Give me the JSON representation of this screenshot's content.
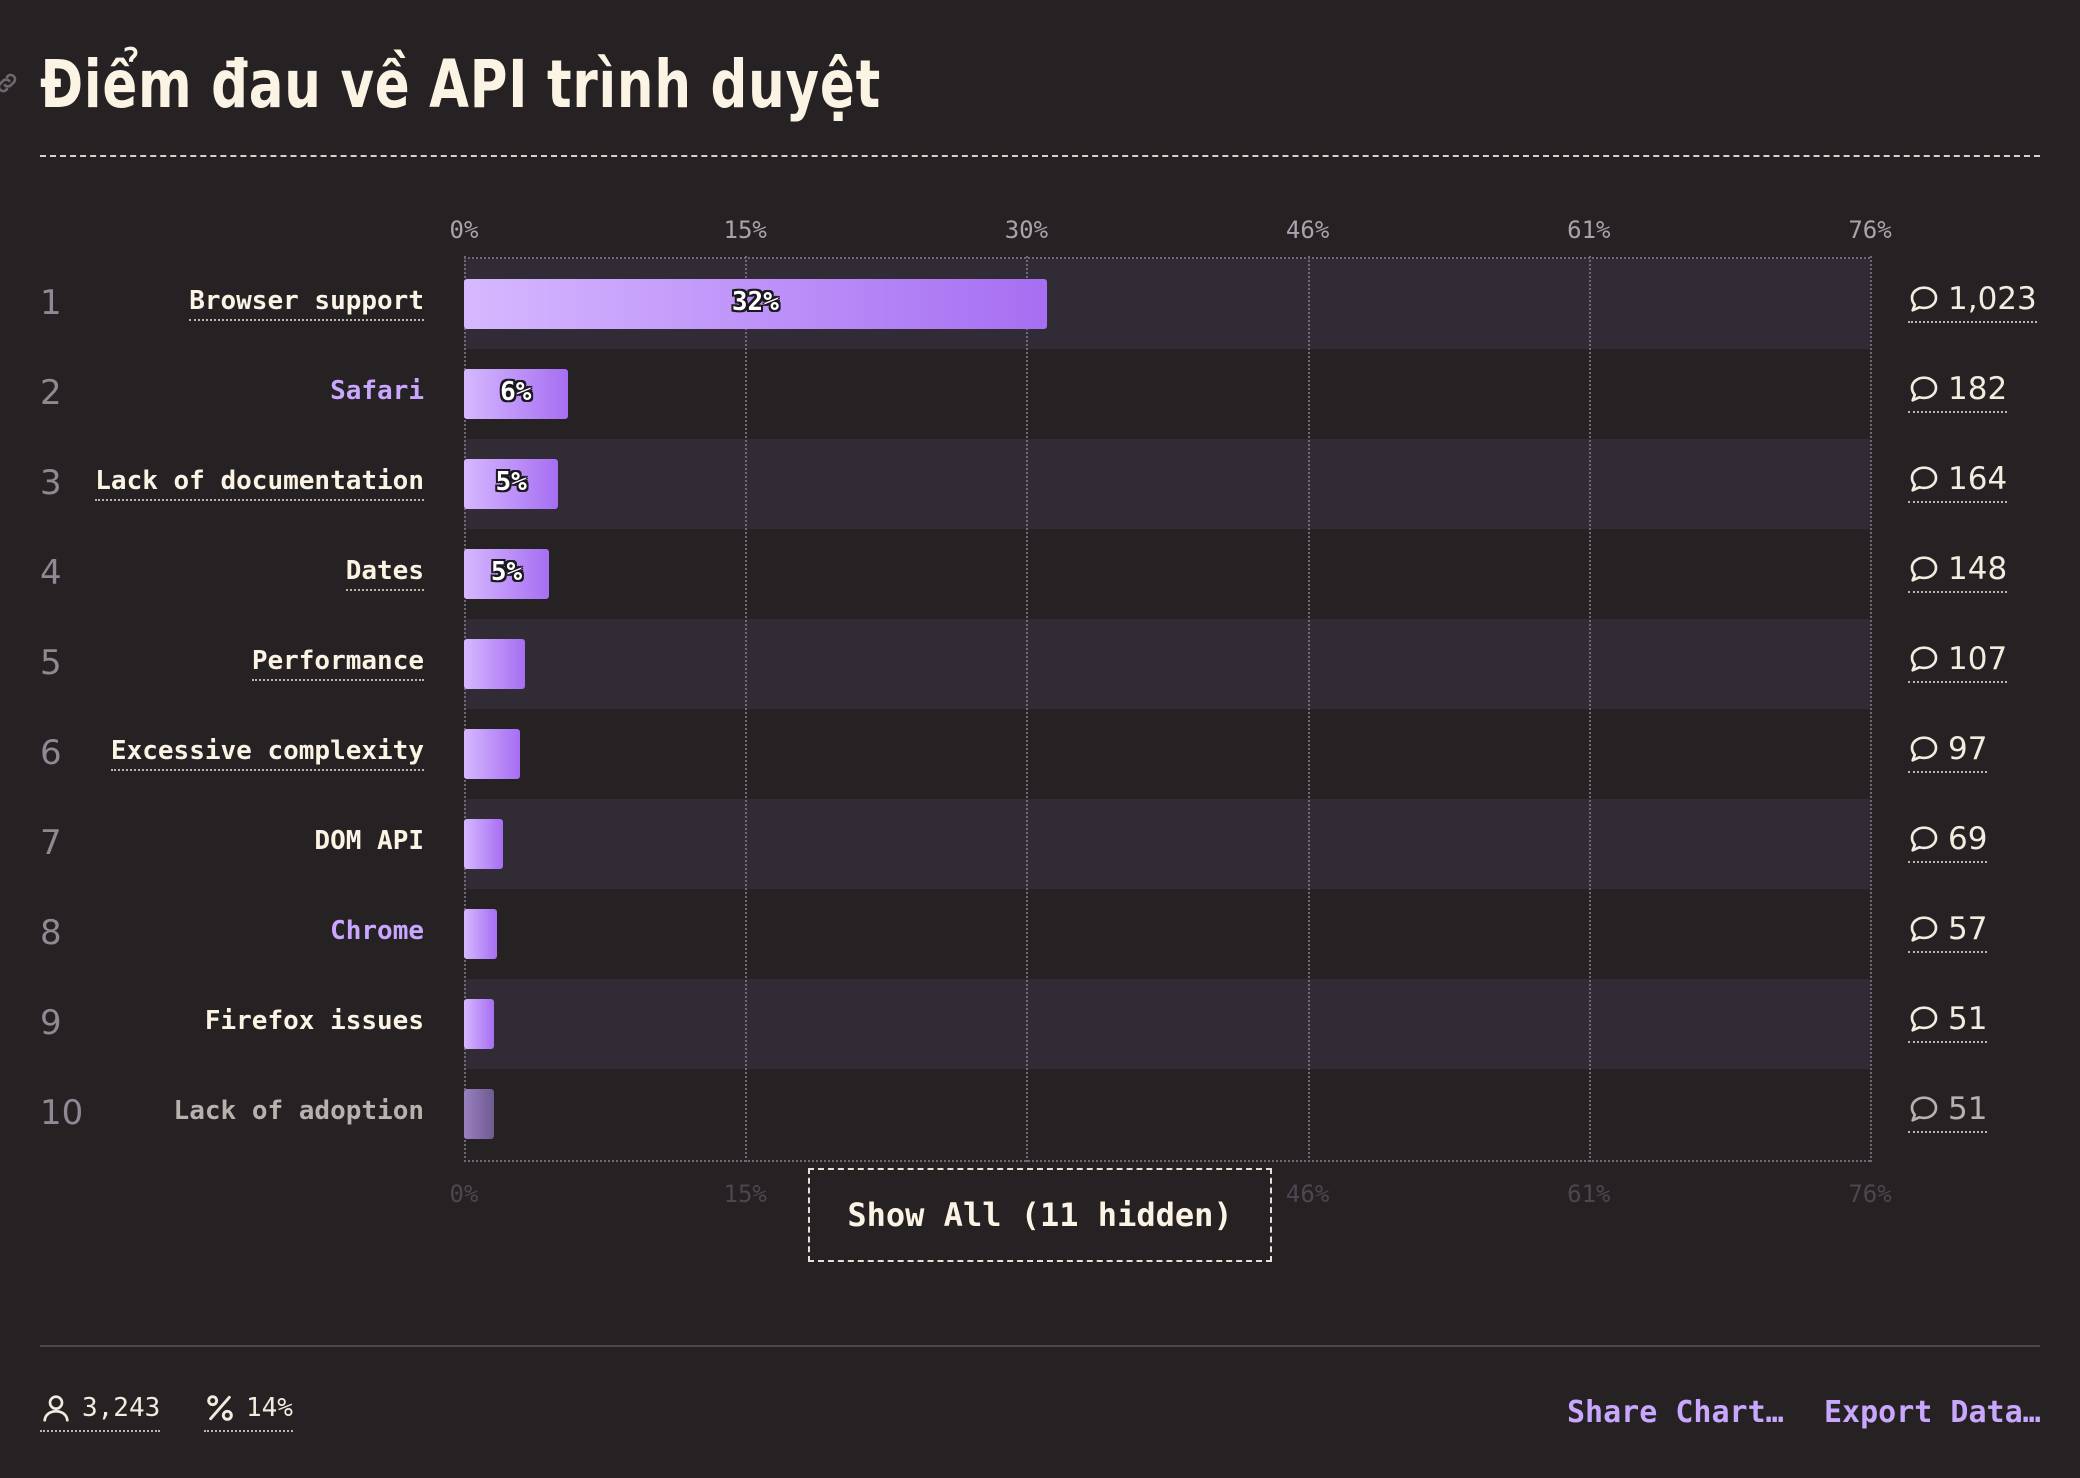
{
  "title": "Điểm đau về API trình duyệt",
  "colors": {
    "background": "#262224",
    "bar_start": "#d6b8ff",
    "bar_end": "#a66ef2",
    "accent": "#c9a7ff",
    "text": "#fbf4e4"
  },
  "icons": {
    "link": "link-icon",
    "comment": "speech-bubble-icon",
    "respondents": "user-icon",
    "percent": "percent-icon"
  },
  "chart_data": {
    "type": "bar",
    "orientation": "horizontal",
    "title": "Điểm đau về API trình duyệt",
    "x_ticks": [
      "0%",
      "15%",
      "30%",
      "46%",
      "61%",
      "76%"
    ],
    "xlim": [
      0,
      76
    ],
    "grid": true,
    "categories": [
      "Browser support",
      "Safari",
      "Lack of documentation",
      "Dates",
      "Performance",
      "Excessive complexity",
      "DOM API",
      "Chrome",
      "Firefox issues",
      "Lack of adoption"
    ],
    "ranks": [
      "1",
      "2",
      "3",
      "4",
      "5",
      "6",
      "7",
      "8",
      "9",
      "10"
    ],
    "values": [
      31.5,
      5.6,
      5.1,
      4.6,
      3.3,
      3.0,
      2.1,
      1.8,
      1.6,
      1.6
    ],
    "value_labels": [
      "32%",
      "6%",
      "5%",
      "5%",
      "",
      "",
      "",
      "",
      "",
      ""
    ],
    "counts": [
      "1,023",
      "182",
      "164",
      "148",
      "107",
      "97",
      "69",
      "57",
      "51",
      "51"
    ],
    "label_styles": [
      "normal",
      "accent",
      "normal",
      "normal",
      "normal",
      "normal",
      "plain",
      "accent",
      "plain",
      "muted"
    ]
  },
  "show_all_label": "Show All (11 hidden)",
  "footer": {
    "respondents": "3,243",
    "percentage": "14%",
    "share_label": "Share Chart…",
    "export_label": "Export Data…"
  }
}
